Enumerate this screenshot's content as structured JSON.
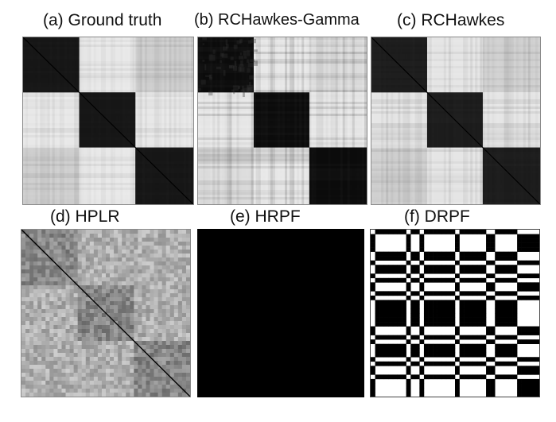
{
  "figure": {
    "panels": [
      {
        "id": "a",
        "title": "(a) Ground truth"
      },
      {
        "id": "b",
        "title": "(b) RCHawkes-Gamma"
      },
      {
        "id": "c",
        "title": "(c) RCHawkes"
      },
      {
        "id": "d",
        "title": "(d) HPLR"
      },
      {
        "id": "e",
        "title": "(e) HRPF"
      },
      {
        "id": "f",
        "title": "(f) DRPF"
      }
    ]
  }
}
